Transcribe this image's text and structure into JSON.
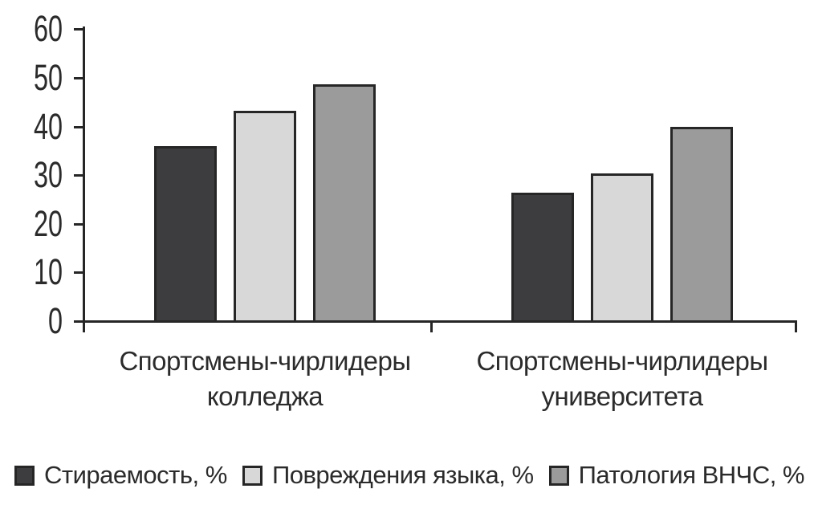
{
  "figure": {
    "background": "#ffffff",
    "axis_color": "#262626",
    "text_color": "#2b2b2b"
  },
  "chart_data": {
    "type": "bar",
    "title": "",
    "xlabel": "",
    "ylabel": "",
    "ylim": [
      0,
      60
    ],
    "yticks": [
      0,
      10,
      20,
      30,
      40,
      50,
      60
    ],
    "grid": false,
    "legend_position": "bottom",
    "bar_border_color": "#262626",
    "categories": [
      "Спортсмены-чирлидеры колледжа",
      "Спортсмены-чирлидеры университета"
    ],
    "categories_lines": [
      [
        "Спортсмены-чирлидеры",
        "колледжа"
      ],
      [
        "Спортсмены-чирлидеры",
        "университета"
      ]
    ],
    "series": [
      {
        "name": "Стираемость, %",
        "color": "#3d3d3f",
        "values": [
          35.9,
          26.4
        ]
      },
      {
        "name": "Повреждения языка, %",
        "color": "#d8d8d8",
        "values": [
          43.3,
          30.3
        ]
      },
      {
        "name": "Патология ВНЧС, %",
        "color": "#9b9b9b",
        "values": [
          48.6,
          40.0
        ]
      }
    ]
  }
}
